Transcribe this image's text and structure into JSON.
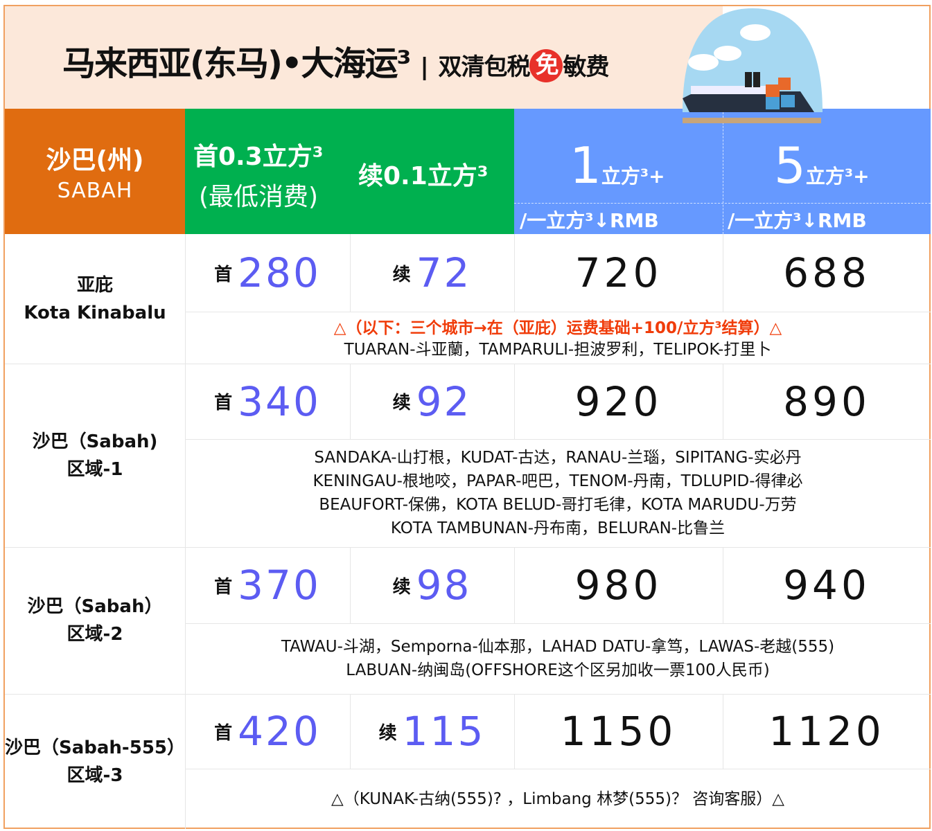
{
  "title": {
    "main": "马来西亚(东马)•大海运³",
    "separator": "|",
    "sub_a": "双清包税",
    "free": "免",
    "sub_b": "敏费"
  },
  "header": {
    "region_cn": "沙巴(州)",
    "region_en": "SABAH",
    "first_line1": "首0.3立方³",
    "first_line2": "(最低消费)",
    "cont": "续0.1立方³",
    "tier1_num": "1",
    "tier1_unit": "立方³+",
    "tier1_sub": "/一立方³↓RMB",
    "tier5_num": "5",
    "tier5_unit": "立方³+",
    "tier5_sub": "/一立方³↓RMB"
  },
  "colors": {
    "orange": "#e06c10",
    "green": "#00b04f",
    "blue": "#6699ff",
    "price": "#5c5cf2",
    "note_red": "#f03c0a"
  },
  "rows": [
    {
      "region1": "亚庇",
      "region2": "Kota Kinabalu",
      "first_label": "首",
      "first": "280",
      "cont_label": "续",
      "cont": "72",
      "tier1": "720",
      "tier5": "688",
      "notes": [
        "△（以下：三个城市→在（亚庇）运费基础+100/立方³结算）△",
        "TUARAN-斗亚蘭，TAMPARULI-担波罗利，TELIPOK-打里卜"
      ]
    },
    {
      "region1": "沙巴（Sabah)",
      "region2": "区域-1",
      "first_label": "首",
      "first": "340",
      "cont_label": "续",
      "cont": "92",
      "tier1": "920",
      "tier5": "890",
      "notes": [
        "SANDAKA-山打根，KUDAT-古达，RANAU-兰瑙，SIPITANG-实必丹",
        "KENINGAU-根地咬，PAPAR-吧巴，TENOM-丹南，TDLUPID-得律必",
        "BEAUFORT-保佛，KOTA BELUD-哥打毛律，KOTA MARUDU-万劳",
        "KOTA TAMBUNAN-丹布南，BELURAN-比鲁兰"
      ]
    },
    {
      "region1": "沙巴（Sabah）",
      "region2": "区域-2",
      "first_label": "首",
      "first": "370",
      "cont_label": "续",
      "cont": "98",
      "tier1": "980",
      "tier5": "940",
      "notes": [
        "TAWAU-斗湖，Semporna-仙本那，LAHAD DATU-拿笃，LAWAS-老越(555)",
        "LABUAN-纳闽岛(OFFSHORE这个区另加收一票100人民币)"
      ]
    },
    {
      "region1": "沙巴（Sabah-555）",
      "region2": "区域-3",
      "first_label": "首",
      "first": "420",
      "cont_label": "续",
      "cont": "115",
      "tier1": "1150",
      "tier5": "1120",
      "notes": [
        "△（KUNAK-古纳(555)? ，Limbang 林梦(555)？ 咨询客服）△"
      ]
    }
  ]
}
